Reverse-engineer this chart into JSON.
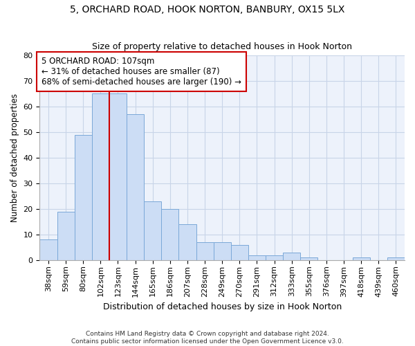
{
  "title1": "5, ORCHARD ROAD, HOOK NORTON, BANBURY, OX15 5LX",
  "title2": "Size of property relative to detached houses in Hook Norton",
  "xlabel": "Distribution of detached houses by size in Hook Norton",
  "ylabel": "Number of detached properties",
  "categories": [
    "38sqm",
    "59sqm",
    "80sqm",
    "102sqm",
    "123sqm",
    "144sqm",
    "165sqm",
    "186sqm",
    "207sqm",
    "228sqm",
    "249sqm",
    "270sqm",
    "291sqm",
    "312sqm",
    "333sqm",
    "355sqm",
    "376sqm",
    "397sqm",
    "418sqm",
    "439sqm",
    "460sqm"
  ],
  "values": [
    8,
    19,
    49,
    65,
    65,
    57,
    23,
    20,
    14,
    7,
    7,
    6,
    2,
    2,
    3,
    1,
    0,
    0,
    1,
    0,
    1
  ],
  "bar_color": "#ccddf5",
  "bar_edge_color": "#7aa8d8",
  "vline_color": "#cc0000",
  "vline_x_index": 3.5,
  "annotation_text": "5 ORCHARD ROAD: 107sqm\n← 31% of detached houses are smaller (87)\n68% of semi-detached houses are larger (190) →",
  "annotation_box_color": "white",
  "annotation_box_edge": "#cc0000",
  "ylim": [
    0,
    80
  ],
  "yticks": [
    0,
    10,
    20,
    30,
    40,
    50,
    60,
    70,
    80
  ],
  "footnote": "Contains HM Land Registry data © Crown copyright and database right 2024.\nContains public sector information licensed under the Open Government Licence v3.0.",
  "bg_color": "#edf2fb",
  "grid_color": "#c8d4e8",
  "title1_fontsize": 10,
  "title2_fontsize": 9,
  "xlabel_fontsize": 9,
  "ylabel_fontsize": 8.5,
  "tick_fontsize": 8,
  "annot_fontsize": 8.5,
  "footnote_fontsize": 6.5
}
